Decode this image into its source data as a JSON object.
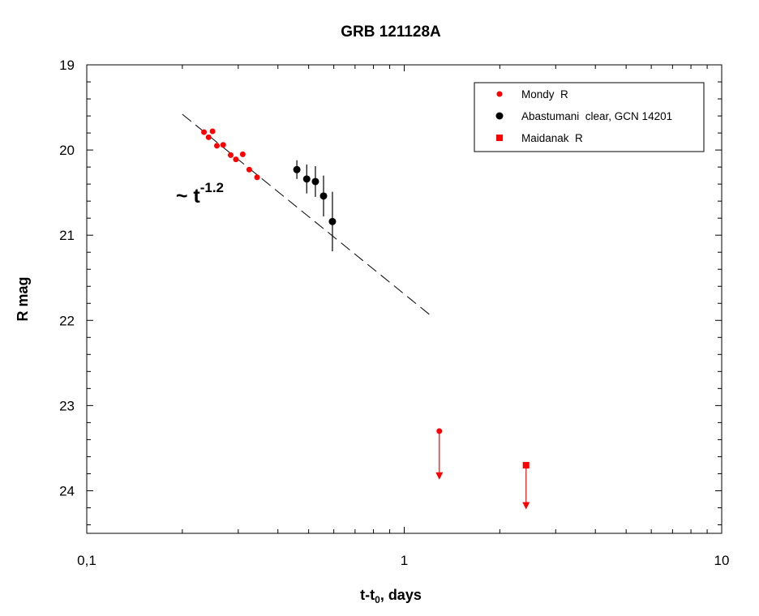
{
  "chart_data": {
    "type": "scatter",
    "title": "GRB 121128A",
    "ylabel": "R mag",
    "xlabel": {
      "main": "t-t",
      "sub": "0",
      "suffix": ", days"
    },
    "x_scale": "log",
    "xlim": [
      0.1,
      10
    ],
    "ylim": [
      24.5,
      19
    ],
    "y_inverted": true,
    "x_tick_labels": [
      {
        "value": 0.1,
        "label": "0,1"
      },
      {
        "value": 1,
        "label": "1"
      },
      {
        "value": 10,
        "label": "10"
      }
    ],
    "y_tick_labels": [
      {
        "value": 19,
        "label": "19"
      },
      {
        "value": 20,
        "label": "20"
      },
      {
        "value": 21,
        "label": "21"
      },
      {
        "value": 22,
        "label": "22"
      },
      {
        "value": 23,
        "label": "23"
      },
      {
        "value": 24,
        "label": "24"
      }
    ],
    "legend_position": "top-right",
    "series": [
      {
        "name": "Mondy  R",
        "color": "#ff0000",
        "marker": "circle-small",
        "points": [
          {
            "x": 0.234,
            "y": 19.79
          },
          {
            "x": 0.242,
            "y": 19.85
          },
          {
            "x": 0.249,
            "y": 19.78
          },
          {
            "x": 0.257,
            "y": 19.95
          },
          {
            "x": 0.269,
            "y": 19.94
          },
          {
            "x": 0.284,
            "y": 20.06
          },
          {
            "x": 0.295,
            "y": 20.11
          },
          {
            "x": 0.31,
            "y": 20.05
          },
          {
            "x": 0.325,
            "y": 20.23
          },
          {
            "x": 0.344,
            "y": 20.32
          }
        ],
        "upper_limits": [
          {
            "x": 1.29,
            "y": 23.3,
            "to": 23.85
          }
        ]
      },
      {
        "name": "Abastumani  clear, GCN 14201",
        "color": "#000000",
        "marker": "circle-large",
        "points": [
          {
            "x": 0.459,
            "y": 20.23,
            "err": 0.11
          },
          {
            "x": 0.493,
            "y": 20.34,
            "err": 0.17
          },
          {
            "x": 0.525,
            "y": 20.37,
            "err": 0.18
          },
          {
            "x": 0.557,
            "y": 20.54,
            "err": 0.24
          },
          {
            "x": 0.594,
            "y": 20.84,
            "err": 0.35
          }
        ]
      },
      {
        "name": "Maidanak  R",
        "color": "#ff0000",
        "marker": "square",
        "points": [],
        "upper_limits": [
          {
            "x": 2.42,
            "y": 23.7,
            "to": 24.2
          }
        ]
      }
    ],
    "fit_line": {
      "x": [
        0.2,
        1.2
      ],
      "y": [
        19.58,
        21.93
      ],
      "style": "dashed",
      "label": {
        "prefix": "~ t",
        "exponent": "-1.2"
      }
    }
  }
}
